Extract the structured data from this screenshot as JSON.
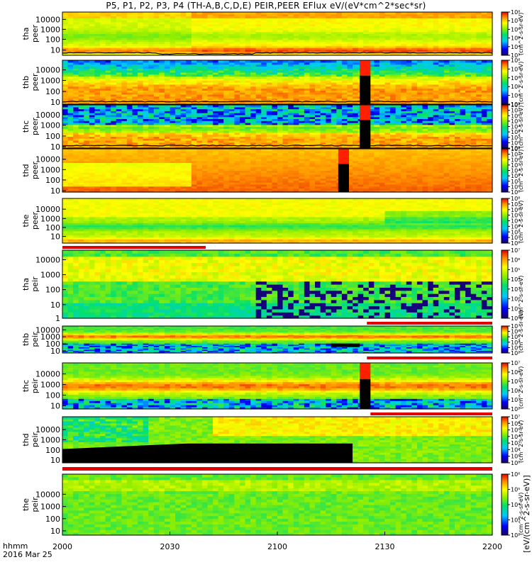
{
  "title": "P5, P1, P2, P3, P4 (TH-A,B,C,D,E) PEIR,PEER EFlux eV/(eV*cm^2*sec*sr)",
  "colorbar_label": "[eV/(cm^2-s-sr-eV)]",
  "colorbar_label_partial": "(cm^2-s-sr-eV)",
  "time_axis": {
    "label_line1": "hhmm",
    "label_line2": "2016 Mar 25",
    "ticks": [
      "2000",
      "2030",
      "2100",
      "2130",
      "2200"
    ]
  },
  "chart_data": {
    "type": "heatmap",
    "x": {
      "start": "20:00",
      "end": "22:00",
      "ticks": [
        "2000",
        "2030",
        "2100",
        "2130",
        "2200"
      ]
    },
    "panels": [
      {
        "probe": "tha",
        "species": "peer",
        "ylabel": "tha\npeer",
        "yticks": [
          "10",
          "100",
          "1000",
          "10000"
        ],
        "ylim": [
          10,
          25000
        ],
        "ytype": "log",
        "cbar_min_exp": 3,
        "cbar_max_exp": 8,
        "mode": "e1",
        "flag_bar": "none",
        "gap": null,
        "black_band": null,
        "scpot": true,
        "dip": true
      },
      {
        "probe": "thb",
        "species": "peer",
        "ylabel": "thb\npeer",
        "yticks": [
          "10",
          "100",
          "1000",
          "10000"
        ],
        "ylim": [
          10,
          20000
        ],
        "ytype": "log",
        "cbar_min_exp": 3,
        "cbar_max_exp": 8,
        "mode": "e2",
        "flag_bar": "none",
        "gap": {
          "start": "21:23",
          "end": "21:26"
        },
        "black_band": null,
        "scpot": true,
        "dip": false
      },
      {
        "probe": "thc",
        "species": "peer",
        "ylabel": "thc\npeer",
        "yticks": [
          "10",
          "100",
          "1000",
          "10000"
        ],
        "ylim": [
          10,
          20000
        ],
        "ytype": "log",
        "cbar_min_exp": 0,
        "cbar_max_exp": 8,
        "mode": "e3",
        "flag_bar": "none",
        "gap": {
          "start": "21:23",
          "end": "21:26"
        },
        "black_band": null,
        "scpot": true,
        "dip": false
      },
      {
        "probe": "thd",
        "species": "peer",
        "ylabel": "thd\npeer",
        "yticks": [
          "10",
          "100",
          "1000",
          "10000"
        ],
        "ylim": [
          10,
          20000
        ],
        "ytype": "log",
        "cbar_min_exp": 0,
        "cbar_max_exp": 8,
        "mode": "e4",
        "flag_bar": "none",
        "gap": {
          "start": "21:17",
          "end": "21:20"
        },
        "black_band": null,
        "scpot": false,
        "dip": false
      },
      {
        "probe": "the",
        "species": "peer",
        "ylabel": "the\npeer",
        "yticks": [
          "10",
          "100",
          "1000",
          "10000"
        ],
        "ylim": [
          7,
          20000
        ],
        "ytype": "log",
        "cbar_min_exp": 0,
        "cbar_max_exp": 8,
        "mode": "e5",
        "flag_bar": "red-start",
        "gap": null,
        "black_band": null,
        "scpot": false,
        "dip": false
      },
      {
        "probe": "tha",
        "species": "peir",
        "ylabel": "tha\npeir",
        "yticks": [
          "1",
          "10",
          "100",
          "1000",
          "10000"
        ],
        "ylim": [
          1,
          20000
        ],
        "ytype": "log",
        "cbar_min_exp": 0,
        "cbar_max_exp": 7,
        "mode": "i1",
        "flag_bar": "red-end",
        "gap": null,
        "black_band": null,
        "scpot": false,
        "dip": false
      },
      {
        "probe": "thb",
        "species": "peir",
        "ylabel": "thb\npeir",
        "yticks": [
          "10",
          "100",
          "1000",
          "10000"
        ],
        "ylim": [
          7,
          20000
        ],
        "ytype": "log",
        "cbar_min_exp": 2,
        "cbar_max_exp": 7,
        "mode": "i2",
        "flag_bar": "red-end",
        "gap": null,
        "black_band": {
          "start": "21:15",
          "end": "21:23"
        },
        "scpot": false,
        "dip": false
      },
      {
        "probe": "thc",
        "species": "peir",
        "ylabel": "thc\npeir",
        "yticks": [
          "10",
          "100",
          "1000",
          "10000"
        ],
        "ylim": [
          7,
          20000
        ],
        "ytype": "log",
        "cbar_min_exp": 2,
        "cbar_max_exp": 7,
        "mode": "i3",
        "flag_bar": "red-end",
        "gap": {
          "start": "21:23",
          "end": "21:26"
        },
        "black_band": null,
        "scpot": false,
        "dip": false
      },
      {
        "probe": "thd",
        "species": "peir",
        "ylabel": "thd\npeir",
        "yticks": [
          "10",
          "100",
          "1000",
          "10000"
        ],
        "ylim": [
          7,
          20000
        ],
        "ytype": "log",
        "cbar_min_exp": 0,
        "cbar_max_exp": 7,
        "mode": "i4",
        "flag_bar": "red-full",
        "gap": null,
        "black_band": null,
        "scpot": false,
        "dip": false
      },
      {
        "probe": "the",
        "species": "peir",
        "ylabel": "the\npeir",
        "yticks": [
          "10",
          "100",
          "1000",
          "10000"
        ],
        "ylim": [
          7,
          20000
        ],
        "ytype": "log",
        "cbar_min_exp": 2,
        "cbar_max_exp": 6,
        "mode": "i5",
        "flag_bar": "none",
        "gap": null,
        "black_band": null,
        "scpot": false,
        "dip": false
      }
    ]
  }
}
